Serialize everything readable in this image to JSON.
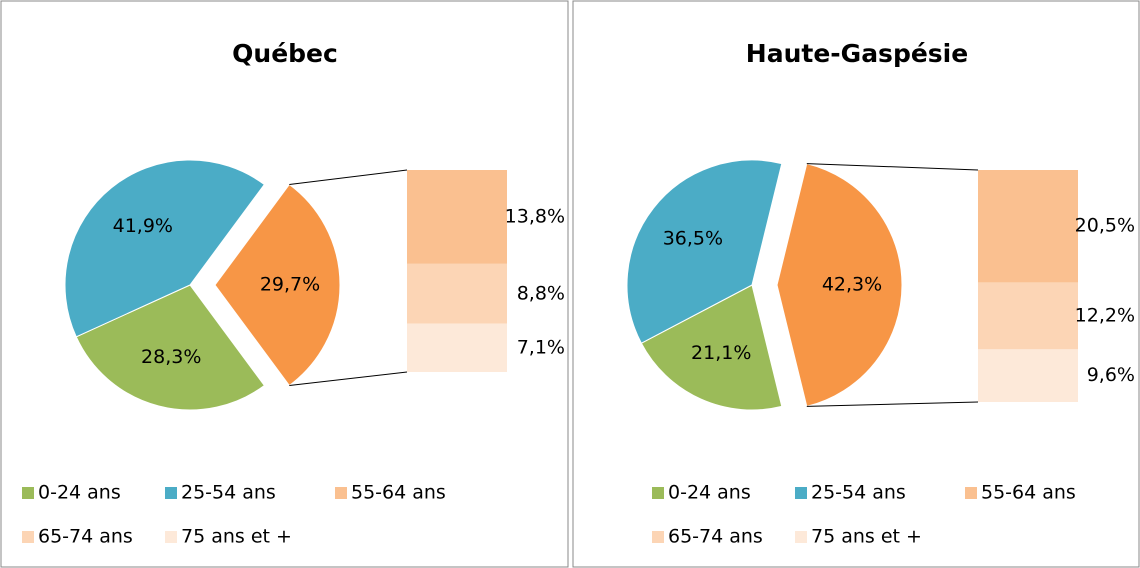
{
  "chart_data": [
    {
      "type": "pie",
      "title": "Québec",
      "categories": [
        "0-24 ans",
        "25-54 ans",
        "55-64 ans",
        "65-74 ans",
        "75 ans et +"
      ],
      "colors": [
        "#9bbb59",
        "#4bacc6",
        "#fac090",
        "#fcd5b5",
        "#fde9d9"
      ],
      "pie_values": [
        28.3,
        41.9,
        29.7
      ],
      "pie_value_labels": [
        "28,3%",
        "41,9%",
        "29,7%"
      ],
      "pie_colors": [
        "#9bbb59",
        "#4bacc6",
        "#f79646"
      ],
      "bar_values": [
        13.8,
        8.8,
        7.1
      ],
      "bar_value_labels": [
        "13,8%",
        "8,8%",
        "7,1%"
      ],
      "bar_colors": [
        "#fac090",
        "#fcd5b5",
        "#fde9d9"
      ]
    },
    {
      "type": "pie",
      "title": "Haute-Gaspésie",
      "categories": [
        "0-24 ans",
        "25-54 ans",
        "55-64 ans",
        "65-74 ans",
        "75 ans et +"
      ],
      "colors": [
        "#9bbb59",
        "#4bacc6",
        "#fac090",
        "#fcd5b5",
        "#fde9d9"
      ],
      "pie_values": [
        21.1,
        36.5,
        42.3
      ],
      "pie_value_labels": [
        "21,1%",
        "36,5%",
        "42,3%"
      ],
      "pie_colors": [
        "#9bbb59",
        "#4bacc6",
        "#f79646"
      ],
      "bar_values": [
        20.5,
        12.2,
        9.6
      ],
      "bar_value_labels": [
        "20,5%",
        "12,2%",
        "9,6%"
      ],
      "bar_colors": [
        "#fac090",
        "#fcd5b5",
        "#fde9d9"
      ]
    }
  ]
}
